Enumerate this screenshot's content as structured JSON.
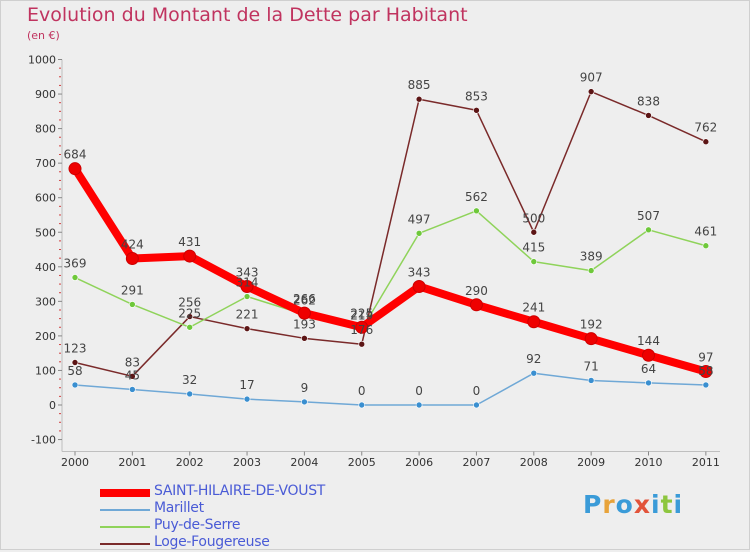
{
  "title": "Evolution du Montant de la Dette par Habitant",
  "unit": "(en €)",
  "logo": {
    "text": "Proxiti",
    "colors": [
      "#3a9bd8",
      "#e8a33a",
      "#3a9bd8",
      "#e2533a",
      "#3a9bd8",
      "#8dc63f",
      "#3a9bd8"
    ]
  },
  "colors": {
    "title": "#c0335f",
    "legend_text": "#4a5bd6",
    "axis": "#bfbfbf",
    "tick_marker": "#d04040"
  },
  "chart_data": {
    "type": "line",
    "x": [
      "2000",
      "2001",
      "2002",
      "2003",
      "2004",
      "2005",
      "2006",
      "2007",
      "2008",
      "2009",
      "2010",
      "2011"
    ],
    "ylim": [
      -100,
      1000
    ],
    "yticks": [
      "-100",
      "0",
      "100",
      "200",
      "300",
      "400",
      "500",
      "600",
      "700",
      "800",
      "900",
      "1000"
    ],
    "legend_position": "bottom-left",
    "series": [
      {
        "name": "SAINT-HILAIRE-DE-VOUST",
        "color": "#ff0000",
        "marker_color": "#ee0000",
        "bold": true,
        "values": [
          684,
          424,
          431,
          343,
          266,
          225,
          343,
          290,
          241,
          192,
          144,
          97
        ],
        "labels": [
          "684",
          "424",
          "431",
          "343",
          "266",
          "225",
          "343",
          "290",
          "241",
          "192",
          "144",
          "97"
        ]
      },
      {
        "name": "Marillet",
        "color": "#6fa8d6",
        "marker_color": "#3a8fd0",
        "bold": false,
        "values": [
          58,
          45,
          32,
          17,
          9,
          0,
          0,
          0,
          92,
          71,
          64,
          58
        ],
        "labels": [
          "58",
          "45",
          "32",
          "17",
          "9",
          "0",
          "0",
          "0",
          "92",
          "71",
          "64",
          "58"
        ]
      },
      {
        "name": "Puy-de-Serre",
        "color": "#8fd35a",
        "marker_color": "#6ec83a",
        "bold": false,
        "values": [
          369,
          291,
          225,
          314,
          262,
          219,
          497,
          562,
          415,
          389,
          507,
          461
        ],
        "labels": [
          "369",
          "291",
          "225",
          "314",
          "262",
          "219",
          "497",
          "562",
          "415",
          "389",
          "507",
          "461"
        ]
      },
      {
        "name": "Loge-Fougereuse",
        "color": "#7a2a2a",
        "marker_color": "#5c1515",
        "bold": false,
        "values": [
          123,
          83,
          256,
          221,
          193,
          176,
          885,
          853,
          500,
          907,
          838,
          762
        ],
        "labels": [
          "123",
          "83",
          "256",
          "221",
          "193",
          "176",
          "885",
          "853",
          "500",
          "907",
          "838",
          "762"
        ]
      }
    ]
  }
}
